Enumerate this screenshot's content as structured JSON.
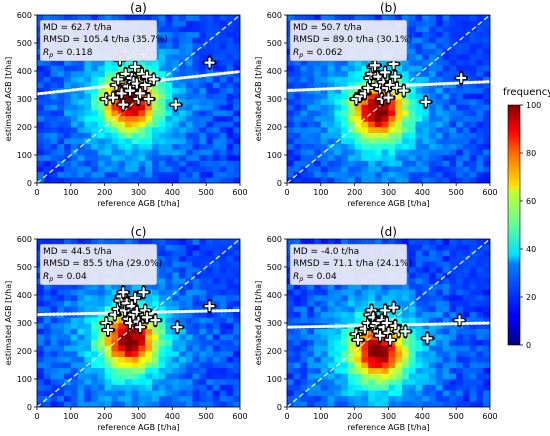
{
  "colors": {
    "diag": "#ffffff",
    "fit": "#ffffff",
    "plot_bg": "#1a1ab0"
  },
  "colorbar": {
    "label": "frequency",
    "ticks": [
      "0",
      "20",
      "40",
      "60",
      "80",
      "100"
    ],
    "range": [
      0,
      100
    ],
    "colormap": "jet"
  },
  "chart_data": [
    {
      "type": "heatmap",
      "panel": "(a)",
      "xlabel": "reference AGB [t/ha]",
      "ylabel": "estimated AGB [t/ha]",
      "xlim": [
        0,
        600
      ],
      "ylim": [
        0,
        600
      ],
      "xticks": [
        "0",
        "100",
        "200",
        "300",
        "400",
        "500",
        "600"
      ],
      "yticks": [
        "0",
        "100",
        "200",
        "300",
        "400",
        "500",
        "600"
      ],
      "stats": {
        "md": "MD = 62.7 t/ha",
        "rmsd": "RMSD = 105.4 t/ha (35.7%)",
        "rp_label": "R",
        "rp_sub": "p",
        "rp_value": " = 0.118"
      },
      "density_center": [
        275,
        290
      ],
      "fit_line": [
        [
          0,
          318
        ],
        [
          600,
          398
        ]
      ],
      "points": [
        [
          205,
          300
        ],
        [
          225,
          305
        ],
        [
          235,
          350
        ],
        [
          240,
          370
        ],
        [
          245,
          440
        ],
        [
          250,
          320
        ],
        [
          255,
          280
        ],
        [
          260,
          470
        ],
        [
          262,
          390
        ],
        [
          265,
          350
        ],
        [
          270,
          345
        ],
        [
          275,
          330
        ],
        [
          280,
          375
        ],
        [
          285,
          360
        ],
        [
          290,
          415
        ],
        [
          295,
          355
        ],
        [
          300,
          300
        ],
        [
          305,
          320
        ],
        [
          310,
          390
        ],
        [
          315,
          460
        ],
        [
          320,
          350
        ],
        [
          325,
          380
        ],
        [
          330,
          300
        ],
        [
          345,
          370
        ],
        [
          410,
          280
        ],
        [
          510,
          430
        ]
      ]
    },
    {
      "type": "heatmap",
      "panel": "(b)",
      "xlabel": "reference AGB [t/ha]",
      "ylabel": "estimated AGB [t/ha]",
      "xlim": [
        0,
        600
      ],
      "ylim": [
        0,
        600
      ],
      "xticks": [
        "0",
        "100",
        "200",
        "300",
        "400",
        "500",
        "600"
      ],
      "yticks": [
        "0",
        "100",
        "200",
        "300",
        "400",
        "500",
        "600"
      ],
      "stats": {
        "md": "MD = 50.7 t/ha",
        "rmsd": "RMSD = 89.0 t/ha (30.1%)",
        "rp_label": "R",
        "rp_sub": "p",
        "rp_value": " = 0.062"
      },
      "density_center": [
        270,
        260
      ],
      "fit_line": [
        [
          0,
          330
        ],
        [
          600,
          362
        ]
      ],
      "points": [
        [
          205,
          300
        ],
        [
          215,
          310
        ],
        [
          230,
          320
        ],
        [
          240,
          340
        ],
        [
          245,
          375
        ],
        [
          250,
          390
        ],
        [
          255,
          415
        ],
        [
          260,
          420
        ],
        [
          265,
          350
        ],
        [
          270,
          380
        ],
        [
          275,
          335
        ],
        [
          280,
          300
        ],
        [
          285,
          360
        ],
        [
          290,
          395
        ],
        [
          295,
          340
        ],
        [
          300,
          305
        ],
        [
          305,
          350
        ],
        [
          315,
          425
        ],
        [
          320,
          380
        ],
        [
          325,
          340
        ],
        [
          345,
          330
        ],
        [
          410,
          290
        ],
        [
          515,
          375
        ]
      ]
    },
    {
      "type": "heatmap",
      "panel": "(c)",
      "xlabel": "reference AGB [t/ha]",
      "ylabel": "estimated AGB [t/ha]",
      "xlim": [
        0,
        600
      ],
      "ylim": [
        0,
        600
      ],
      "xticks": [
        "0",
        "100",
        "200",
        "300",
        "400",
        "500",
        "600"
      ],
      "yticks": [
        "0",
        "100",
        "200",
        "300",
        "400",
        "500",
        "600"
      ],
      "stats": {
        "md": "MD = 44.5 t/ha",
        "rmsd": "RMSD = 85.5 t/ha (29.0%)",
        "rp_label": "R",
        "rp_sub": "p",
        "rp_value": " = 0.04"
      },
      "density_center": [
        275,
        240
      ],
      "fit_line": [
        [
          0,
          330
        ],
        [
          600,
          345
        ]
      ],
      "points": [
        [
          205,
          300
        ],
        [
          210,
          275
        ],
        [
          230,
          330
        ],
        [
          240,
          350
        ],
        [
          245,
          380
        ],
        [
          250,
          395
        ],
        [
          255,
          410
        ],
        [
          260,
          345
        ],
        [
          265,
          370
        ],
        [
          270,
          315
        ],
        [
          275,
          300
        ],
        [
          280,
          360
        ],
        [
          285,
          330
        ],
        [
          290,
          390
        ],
        [
          295,
          340
        ],
        [
          300,
          305
        ],
        [
          305,
          285
        ],
        [
          315,
          410
        ],
        [
          320,
          345
        ],
        [
          325,
          320
        ],
        [
          350,
          310
        ],
        [
          415,
          285
        ],
        [
          510,
          360
        ]
      ]
    },
    {
      "type": "heatmap",
      "panel": "(d)",
      "xlabel": "reference AGB [t/ha]",
      "ylabel": "estimated AGB [t/ha]",
      "xlim": [
        0,
        600
      ],
      "ylim": [
        0,
        600
      ],
      "xticks": [
        "0",
        "100",
        "200",
        "300",
        "400",
        "500",
        "600"
      ],
      "yticks": [
        "0",
        "100",
        "200",
        "300",
        "400",
        "500",
        "600"
      ],
      "stats": {
        "md": "MD = -4.0 t/ha",
        "rmsd": "RMSD = 71.1 t/ha (24.1%)",
        "rp_label": "R",
        "rp_sub": "p",
        "rp_value": " = 0.04"
      },
      "density_center": [
        270,
        200
      ],
      "fit_line": [
        [
          0,
          285
        ],
        [
          600,
          300
        ]
      ],
      "points": [
        [
          205,
          260
        ],
        [
          210,
          240
        ],
        [
          230,
          280
        ],
        [
          240,
          300
        ],
        [
          245,
          330
        ],
        [
          250,
          345
        ],
        [
          255,
          320
        ],
        [
          260,
          290
        ],
        [
          265,
          300
        ],
        [
          270,
          270
        ],
        [
          275,
          255
        ],
        [
          280,
          310
        ],
        [
          285,
          285
        ],
        [
          290,
          345
        ],
        [
          295,
          300
        ],
        [
          300,
          265
        ],
        [
          305,
          240
        ],
        [
          315,
          355
        ],
        [
          320,
          290
        ],
        [
          330,
          270
        ],
        [
          350,
          270
        ],
        [
          415,
          245
        ],
        [
          510,
          310
        ]
      ]
    }
  ]
}
